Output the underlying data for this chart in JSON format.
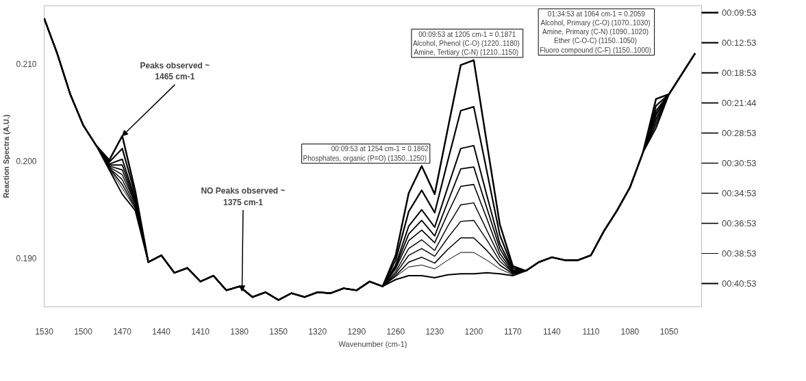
{
  "chart_data": {
    "type": "line",
    "xlabel": "Wavenumber (cm-1)",
    "ylabel": "Reaction Spectra (A.U.)",
    "legend": "right",
    "xlim": [
      1530,
      1025
    ],
    "xticks": [
      1530,
      1500,
      1470,
      1440,
      1410,
      1380,
      1350,
      1320,
      1290,
      1260,
      1230,
      1200,
      1170,
      1140,
      1110,
      1080,
      1050
    ],
    "ylim": [
      0.185,
      0.216
    ],
    "yticks": [
      {
        "value": 0.19,
        "label": "0.190"
      },
      {
        "value": 0.2,
        "label": "0.200"
      },
      {
        "value": 0.21,
        "label": "0.210"
      }
    ],
    "x": [
      1530,
      1520,
      1510,
      1500,
      1490,
      1480,
      1470,
      1460,
      1450,
      1440,
      1430,
      1420,
      1410,
      1400,
      1390,
      1380,
      1370,
      1360,
      1350,
      1340,
      1330,
      1320,
      1310,
      1300,
      1290,
      1280,
      1270,
      1260,
      1250,
      1240,
      1230,
      1220,
      1210,
      1200,
      1190,
      1180,
      1170,
      1160,
      1150,
      1140,
      1130,
      1120,
      1110,
      1100,
      1090,
      1080,
      1070,
      1060,
      1050,
      1040,
      1030
    ],
    "series": [
      {
        "name": "00:09:53",
        "color": "#000000",
        "values": [
          0.2147,
          0.2111,
          0.2069,
          0.2037,
          0.2016,
          0.2001,
          0.2026,
          0.1969,
          0.1896,
          0.1903,
          0.1885,
          0.189,
          0.1876,
          0.1882,
          0.1867,
          0.1871,
          0.186,
          0.1865,
          0.1857,
          0.1864,
          0.186,
          0.1865,
          0.1864,
          0.1869,
          0.1867,
          0.1876,
          0.1871,
          0.1903,
          0.1967,
          0.1995,
          0.1966,
          0.2033,
          0.2099,
          0.2104,
          0.2019,
          0.1935,
          0.1892,
          0.1887,
          0.1896,
          0.1901,
          0.1898,
          0.1898,
          0.1903,
          0.1928,
          0.1949,
          0.1973,
          0.2009,
          0.2064,
          0.2069,
          0.209,
          0.2111
        ]
      },
      {
        "name": "00:12:53",
        "color": "#000000",
        "values": [
          0.2147,
          0.2111,
          0.2069,
          0.2037,
          0.2016,
          0.1999,
          0.2013,
          0.1965,
          0.1896,
          0.1903,
          0.1885,
          0.189,
          0.1876,
          0.1882,
          0.1867,
          0.1871,
          0.186,
          0.1865,
          0.1857,
          0.1864,
          0.186,
          0.1865,
          0.1864,
          0.1869,
          0.1867,
          0.1876,
          0.1871,
          0.1898,
          0.1948,
          0.197,
          0.1947,
          0.2,
          0.2052,
          0.2056,
          0.199,
          0.1924,
          0.189,
          0.1887,
          0.1896,
          0.1901,
          0.1898,
          0.1898,
          0.1903,
          0.1928,
          0.1949,
          0.1973,
          0.2009,
          0.2057,
          0.2069,
          0.209,
          0.2111
        ]
      },
      {
        "name": "00:18:53",
        "color": "#000000",
        "values": [
          0.2147,
          0.2111,
          0.2069,
          0.2037,
          0.2016,
          0.1997,
          0.2002,
          0.1961,
          0.1896,
          0.1903,
          0.1885,
          0.189,
          0.1876,
          0.1882,
          0.1867,
          0.1871,
          0.186,
          0.1865,
          0.1857,
          0.1864,
          0.186,
          0.1865,
          0.1864,
          0.1869,
          0.1867,
          0.1876,
          0.1871,
          0.1893,
          0.1933,
          0.195,
          0.1932,
          0.1973,
          0.2013,
          0.2016,
          0.1965,
          0.1915,
          0.1888,
          0.1887,
          0.1896,
          0.1901,
          0.1898,
          0.1898,
          0.1903,
          0.1928,
          0.1949,
          0.1973,
          0.2009,
          0.2052,
          0.2069,
          0.209,
          0.2111
        ]
      },
      {
        "name": "00:21:44",
        "color": "#000000",
        "values": [
          0.2147,
          0.2111,
          0.2069,
          0.2037,
          0.2016,
          0.1996,
          0.1996,
          0.1959,
          0.1896,
          0.1903,
          0.1885,
          0.189,
          0.1876,
          0.1882,
          0.1867,
          0.1871,
          0.186,
          0.1865,
          0.1857,
          0.1864,
          0.186,
          0.1865,
          0.1864,
          0.1869,
          0.1867,
          0.1876,
          0.1871,
          0.1891,
          0.1925,
          0.1939,
          0.1923,
          0.1958,
          0.1992,
          0.1994,
          0.1952,
          0.191,
          0.1887,
          0.1887,
          0.1896,
          0.1901,
          0.1898,
          0.1898,
          0.1903,
          0.1928,
          0.1949,
          0.1973,
          0.2009,
          0.2049,
          0.2069,
          0.209,
          0.2111
        ]
      },
      {
        "name": "00:28:53",
        "color": "#000000",
        "values": [
          0.2147,
          0.2111,
          0.2069,
          0.2037,
          0.2016,
          0.1995,
          0.1991,
          0.1957,
          0.1896,
          0.1903,
          0.1885,
          0.189,
          0.1876,
          0.1882,
          0.1867,
          0.1871,
          0.186,
          0.1865,
          0.1857,
          0.1864,
          0.186,
          0.1865,
          0.1864,
          0.1869,
          0.1867,
          0.1876,
          0.1871,
          0.1889,
          0.1918,
          0.1929,
          0.1916,
          0.1946,
          0.1974,
          0.1976,
          0.1941,
          0.1905,
          0.1886,
          0.1887,
          0.1896,
          0.1901,
          0.1898,
          0.1898,
          0.1903,
          0.1928,
          0.1949,
          0.1973,
          0.2009,
          0.2047,
          0.2069,
          0.209,
          0.2111
        ]
      },
      {
        "name": "00:30:53",
        "color": "#000000",
        "values": [
          0.2147,
          0.2111,
          0.2069,
          0.2037,
          0.2016,
          0.1994,
          0.1986,
          0.1956,
          0.1896,
          0.1903,
          0.1885,
          0.189,
          0.1876,
          0.1882,
          0.1867,
          0.1871,
          0.186,
          0.1865,
          0.1857,
          0.1864,
          0.186,
          0.1865,
          0.1864,
          0.1869,
          0.1867,
          0.1876,
          0.1871,
          0.1886,
          0.191,
          0.1919,
          0.1908,
          0.1933,
          0.1955,
          0.1957,
          0.1929,
          0.1901,
          0.1885,
          0.1887,
          0.1896,
          0.1901,
          0.1898,
          0.1898,
          0.1903,
          0.1928,
          0.1949,
          0.1973,
          0.2009,
          0.2044,
          0.2069,
          0.209,
          0.2111
        ]
      },
      {
        "name": "00:34:53",
        "color": "#000000",
        "values": [
          0.2147,
          0.2111,
          0.2069,
          0.2037,
          0.2016,
          0.1993,
          0.1981,
          0.1954,
          0.1896,
          0.1903,
          0.1885,
          0.189,
          0.1876,
          0.1882,
          0.1867,
          0.1871,
          0.186,
          0.1865,
          0.1857,
          0.1864,
          0.186,
          0.1865,
          0.1864,
          0.1869,
          0.1867,
          0.1876,
          0.1871,
          0.1884,
          0.1903,
          0.191,
          0.1902,
          0.1921,
          0.1938,
          0.1939,
          0.1919,
          0.1897,
          0.1885,
          0.1887,
          0.1896,
          0.1901,
          0.1898,
          0.1898,
          0.1903,
          0.1928,
          0.1949,
          0.1973,
          0.2009,
          0.2042,
          0.2069,
          0.209,
          0.2111
        ]
      },
      {
        "name": "00:36:53",
        "color": "#000000",
        "values": [
          0.2147,
          0.2111,
          0.2069,
          0.2037,
          0.2016,
          0.1993,
          0.1976,
          0.1952,
          0.1896,
          0.1903,
          0.1885,
          0.189,
          0.1876,
          0.1882,
          0.1867,
          0.1871,
          0.186,
          0.1865,
          0.1857,
          0.1864,
          0.186,
          0.1865,
          0.1864,
          0.1869,
          0.1867,
          0.1876,
          0.1871,
          0.1882,
          0.1896,
          0.1901,
          0.1895,
          0.1909,
          0.1921,
          0.1921,
          0.1908,
          0.1893,
          0.1884,
          0.1887,
          0.1896,
          0.1901,
          0.1898,
          0.1898,
          0.1903,
          0.1928,
          0.1949,
          0.1973,
          0.2009,
          0.2039,
          0.2069,
          0.209,
          0.2111
        ]
      },
      {
        "name": "00:38:53",
        "color": "#000000",
        "values": [
          0.2147,
          0.2111,
          0.2069,
          0.2037,
          0.2016,
          0.1992,
          0.1972,
          0.1951,
          0.1896,
          0.1903,
          0.1885,
          0.189,
          0.1876,
          0.1882,
          0.1867,
          0.1871,
          0.186,
          0.1865,
          0.1857,
          0.1864,
          0.186,
          0.1865,
          0.1864,
          0.1869,
          0.1867,
          0.1876,
          0.1871,
          0.1881,
          0.1891,
          0.1893,
          0.1889,
          0.1898,
          0.1906,
          0.1906,
          0.1898,
          0.1889,
          0.1883,
          0.1887,
          0.1896,
          0.1901,
          0.1898,
          0.1898,
          0.1903,
          0.1928,
          0.1949,
          0.1973,
          0.2009,
          0.2037,
          0.2069,
          0.209,
          0.2111
        ]
      },
      {
        "name": "00:40:53",
        "color": "#000000",
        "values": [
          0.2147,
          0.2111,
          0.2069,
          0.2037,
          0.2016,
          0.1991,
          0.1966,
          0.1949,
          0.1896,
          0.1903,
          0.1885,
          0.189,
          0.1876,
          0.1882,
          0.1867,
          0.1871,
          0.186,
          0.1865,
          0.1857,
          0.1864,
          0.186,
          0.1865,
          0.1864,
          0.1869,
          0.1867,
          0.1876,
          0.1871,
          0.1878,
          0.1882,
          0.1882,
          0.188,
          0.1883,
          0.1884,
          0.1884,
          0.1885,
          0.1884,
          0.1882,
          0.1887,
          0.1896,
          0.1901,
          0.1898,
          0.1898,
          0.1903,
          0.1928,
          0.1949,
          0.1973,
          0.2009,
          0.2034,
          0.2069,
          0.209,
          0.2111
        ]
      }
    ],
    "annotations": [
      {
        "text": "00:09:53 at 1205 cm-1 = 0.1871\n Alcohol, Phenol (C-O) (1220..1180)\n Amine, Tertiary (C-N) (1210..1150)",
        "x": 1205,
        "y": 0.2104
      },
      {
        "text": "00:09:53 at 1254 cm-1 = 0.1862\n Phosphates, organic (P=O) (1350..1250)",
        "x": 1240,
        "y": 0.1995
      },
      "01:34:53 at 1064 cm-1 = 0.2059\n Alcohol, Primary (C-O) (1070..1030)\n Amine, Primary (C-N) (1090..1020)\n Ether (C-O-C) (1150..1050)\n Fluoro compound (C-F) (1150..1000)",
      {
        "text": "Peaks observed ~\n1465 cm-1",
        "x": 1470,
        "y": 0.2026
      },
      {
        "text": "NO Peaks observed ~\n1375 cm-1",
        "x": 1378,
        "y": 0.1866
      }
    ]
  }
}
